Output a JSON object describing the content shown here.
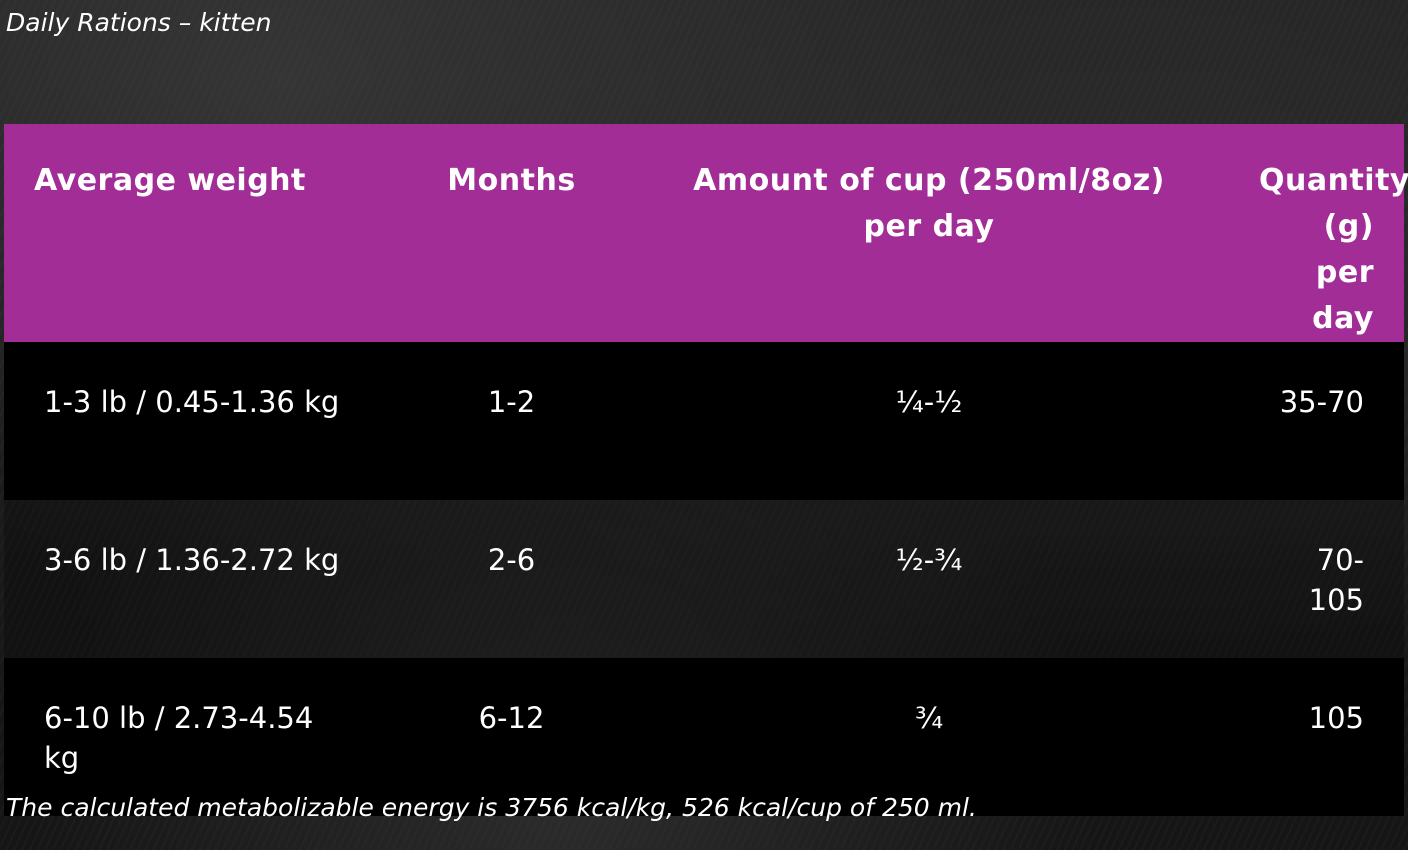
{
  "title": "Daily Rations – kitten",
  "table": {
    "headers": [
      "Average weight",
      "Months",
      "Amount of cup (250ml/8oz) per day",
      "Quantity (g) per day"
    ],
    "rows": [
      [
        "1-3 lb / 0.45-1.36 kg",
        "1-2",
        "¼-½",
        "35-70"
      ],
      [
        "3-6 lb / 1.36-2.72 kg",
        "2-6",
        "½-¾",
        "70-105"
      ],
      [
        "6-10 lb / 2.73-4.54 kg",
        "6-12",
        "¾",
        "105"
      ]
    ]
  },
  "colors": {
    "header": "#a22d96"
  },
  "note": "The calculated metabolizable energy is 3756 kcal/kg, 526 kcal/cup of 250 ml."
}
